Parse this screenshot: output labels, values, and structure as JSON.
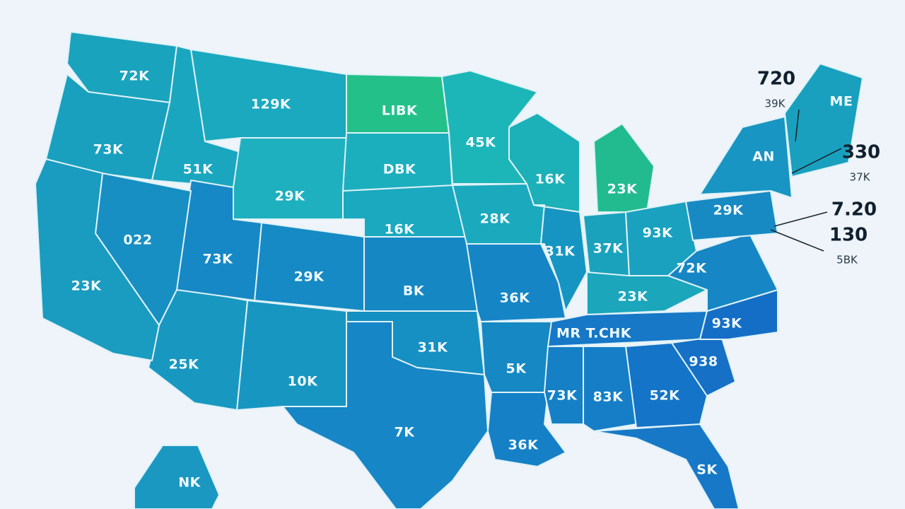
{
  "map": {
    "regions": [
      {
        "label": "72K"
      },
      {
        "label": "73K"
      },
      {
        "label": "51K"
      },
      {
        "label": "129K"
      },
      {
        "label": "29K"
      },
      {
        "label": "LIBK"
      },
      {
        "label": "DBK"
      },
      {
        "label": "16K"
      },
      {
        "label": "BK"
      },
      {
        "label": "31K"
      },
      {
        "label": "7K"
      },
      {
        "label": "10K"
      },
      {
        "label": "25K"
      },
      {
        "label": "29K"
      },
      {
        "label": "73K"
      },
      {
        "label": "022"
      },
      {
        "label": "23K"
      },
      {
        "label": "45K"
      },
      {
        "label": "28K"
      },
      {
        "label": "36K"
      },
      {
        "label": "5K"
      },
      {
        "label": "36K"
      },
      {
        "label": "16K"
      },
      {
        "label": "31K"
      },
      {
        "label": "23K"
      },
      {
        "label": "37K"
      },
      {
        "label": "93K"
      },
      {
        "label": "23K"
      },
      {
        "label": "MR T.CHK"
      },
      {
        "label": "73K"
      },
      {
        "label": "83K"
      },
      {
        "label": "52K"
      },
      {
        "label": "SK"
      },
      {
        "label": "938"
      },
      {
        "label": "93K"
      },
      {
        "label": "72K"
      },
      {
        "label": "29K"
      },
      {
        "label": "AN"
      },
      {
        "label": "ME"
      },
      {
        "label": "NK"
      }
    ],
    "callouts": [
      {
        "value": "720",
        "sub": "39K"
      },
      {
        "value": "330",
        "sub": "37K"
      },
      {
        "value": "7.20",
        "sub": null
      },
      {
        "value": "130",
        "sub": "5BK"
      }
    ]
  }
}
